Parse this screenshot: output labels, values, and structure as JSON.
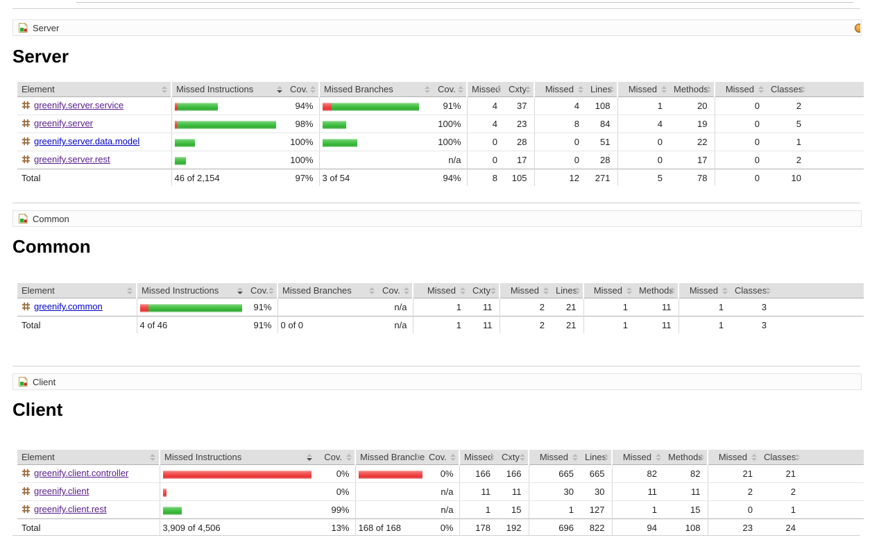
{
  "colors": {
    "covered_green": "#3dbd3d",
    "missed_red": "#ef4040",
    "link_visited": "#551a8b",
    "link_new": "#0000cc",
    "header_bg": "#e0e0e0"
  },
  "table_headers": [
    "Element",
    "Missed Instructions",
    "Cov.",
    "Missed Branches",
    "Cov.",
    "Missed",
    "Cxty",
    "Missed",
    "Lines",
    "Missed",
    "Methods",
    "Missed",
    "Classes"
  ],
  "sections": [
    {
      "breadcrumb": "Server",
      "title": "Server",
      "rows": [
        {
          "element": "greenify.server.service",
          "link_color": "#551a8b",
          "ibar": {
            "missed": 4,
            "covered": 58
          },
          "icov": "94%",
          "bbar": {
            "missed": 13,
            "covered": 126
          },
          "bcov": "91%",
          "cells": [
            "4",
            "37",
            "4",
            "108",
            "1",
            "20",
            "0",
            "2"
          ]
        },
        {
          "element": "greenify.server",
          "link_color": "#551a8b",
          "ibar": {
            "missed": 3,
            "covered": 143
          },
          "icov": "98%",
          "bbar": {
            "missed": 0,
            "covered": 34
          },
          "bcov": "100%",
          "cells": [
            "4",
            "23",
            "8",
            "84",
            "4",
            "19",
            "0",
            "5"
          ]
        },
        {
          "element": "greenify.server.data.model",
          "link_color": "#0000cc",
          "ibar": {
            "missed": 0,
            "covered": 29
          },
          "icov": "100%",
          "bbar": {
            "missed": 0,
            "covered": 50
          },
          "bcov": "100%",
          "cells": [
            "0",
            "28",
            "0",
            "51",
            "0",
            "22",
            "0",
            "1"
          ]
        },
        {
          "element": "greenify.server.rest",
          "link_color": "#551a8b",
          "ibar": {
            "missed": 0,
            "covered": 16
          },
          "icov": "100%",
          "bbar": {
            "missed": 0,
            "covered": 0
          },
          "bcov": "n/a",
          "cells": [
            "0",
            "17",
            "0",
            "28",
            "0",
            "17",
            "0",
            "2"
          ]
        }
      ],
      "total": {
        "label": "Total",
        "instructions": "46 of 2,154",
        "icov": "97%",
        "branches": "3 of 54",
        "bcov": "94%",
        "cells": [
          "8",
          "105",
          "12",
          "271",
          "5",
          "78",
          "0",
          "10"
        ]
      }
    },
    {
      "breadcrumb": "Common",
      "title": "Common",
      "rows": [
        {
          "element": "greenify.common",
          "link_color": "#0000cc",
          "ibar": {
            "missed": 12,
            "covered": 135
          },
          "icov": "91%",
          "bbar": {
            "missed": 0,
            "covered": 0
          },
          "bcov": "n/a",
          "cells": [
            "1",
            "11",
            "2",
            "21",
            "1",
            "11",
            "1",
            "3"
          ]
        }
      ],
      "total": {
        "label": "Total",
        "instructions": "4 of 46",
        "icov": "91%",
        "branches": "0 of 0",
        "bcov": "n/a",
        "cells": [
          "1",
          "11",
          "2",
          "21",
          "1",
          "11",
          "1",
          "3"
        ]
      }
    },
    {
      "breadcrumb": "Client",
      "title": "Client",
      "rows": [
        {
          "element": "greenify.client.controller",
          "link_color": "#551a8b",
          "ibar": {
            "missed": 214,
            "covered": 0
          },
          "icov": "0%",
          "bbar": {
            "missed": 92,
            "covered": 0
          },
          "bcov": "0%",
          "cells": [
            "166",
            "166",
            "665",
            "665",
            "82",
            "82",
            "21",
            "21"
          ]
        },
        {
          "element": "greenify.client",
          "link_color": "#551a8b",
          "ibar": {
            "missed": 5,
            "covered": 0
          },
          "icov": "0%",
          "bbar": {
            "missed": 0,
            "covered": 0
          },
          "bcov": "n/a",
          "cells": [
            "11",
            "11",
            "30",
            "30",
            "11",
            "11",
            "2",
            "2"
          ]
        },
        {
          "element": "greenify.client.rest",
          "link_color": "#551a8b",
          "ibar": {
            "missed": 0,
            "covered": 27
          },
          "icov": "99%",
          "bbar": {
            "missed": 0,
            "covered": 0
          },
          "bcov": "n/a",
          "cells": [
            "1",
            "15",
            "1",
            "127",
            "1",
            "15",
            "0",
            "1"
          ]
        }
      ],
      "total": {
        "label": "Total",
        "instructions": "3,909 of 4,506",
        "icov": "13%",
        "branches": "168 of 168",
        "bcov": "0%",
        "cells": [
          "178",
          "192",
          "696",
          "822",
          "94",
          "108",
          "23",
          "24"
        ]
      }
    }
  ]
}
